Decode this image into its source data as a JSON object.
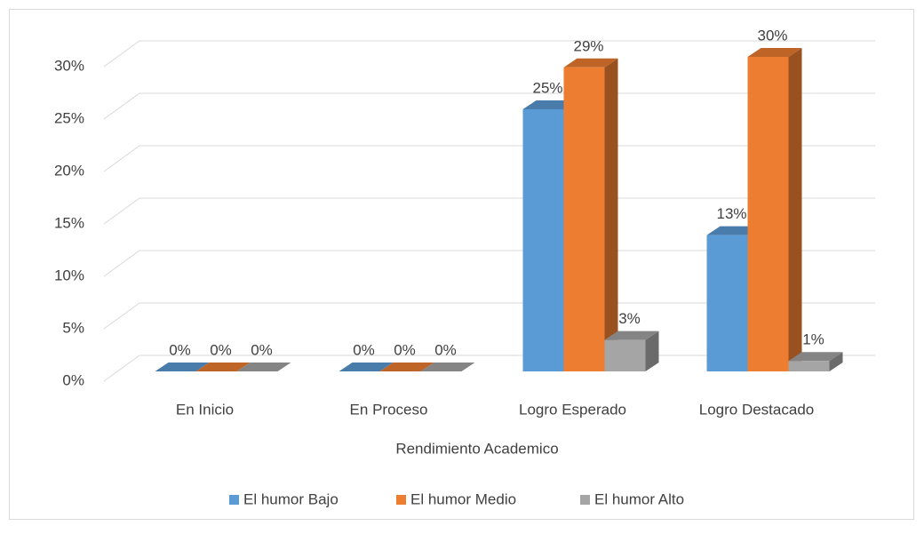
{
  "chart_data": {
    "type": "bar3d",
    "x_label": "Rendimiento Academico",
    "categories": [
      "En Inicio",
      "En Proceso",
      "Logro Esperado",
      "Logro Destacado"
    ],
    "series": [
      {
        "name": "El humor Bajo",
        "color": "#5b9bd5",
        "values": [
          0,
          0,
          25,
          13
        ],
        "value_labels": [
          "0%",
          "0%",
          "25%",
          "13%"
        ]
      },
      {
        "name": "El humor Medio",
        "color": "#ed7d31",
        "values": [
          0,
          0,
          29,
          30
        ],
        "value_labels": [
          "0%",
          "0%",
          "29%",
          "30%"
        ]
      },
      {
        "name": "El humor Alto",
        "color": "#a5a5a5",
        "values": [
          0,
          0,
          3,
          1
        ],
        "value_labels": [
          "0%",
          "0%",
          "3%",
          "1%"
        ]
      }
    ],
    "ylim": [
      0,
      30
    ],
    "yticks": [
      {
        "value": 0,
        "label": "0%"
      },
      {
        "value": 5,
        "label": "5%"
      },
      {
        "value": 10,
        "label": "10%"
      },
      {
        "value": 15,
        "label": "15%"
      },
      {
        "value": 20,
        "label": "20%"
      },
      {
        "value": 25,
        "label": "25%"
      },
      {
        "value": 30,
        "label": "30%"
      }
    ],
    "grid": true,
    "legend": "bottom"
  }
}
